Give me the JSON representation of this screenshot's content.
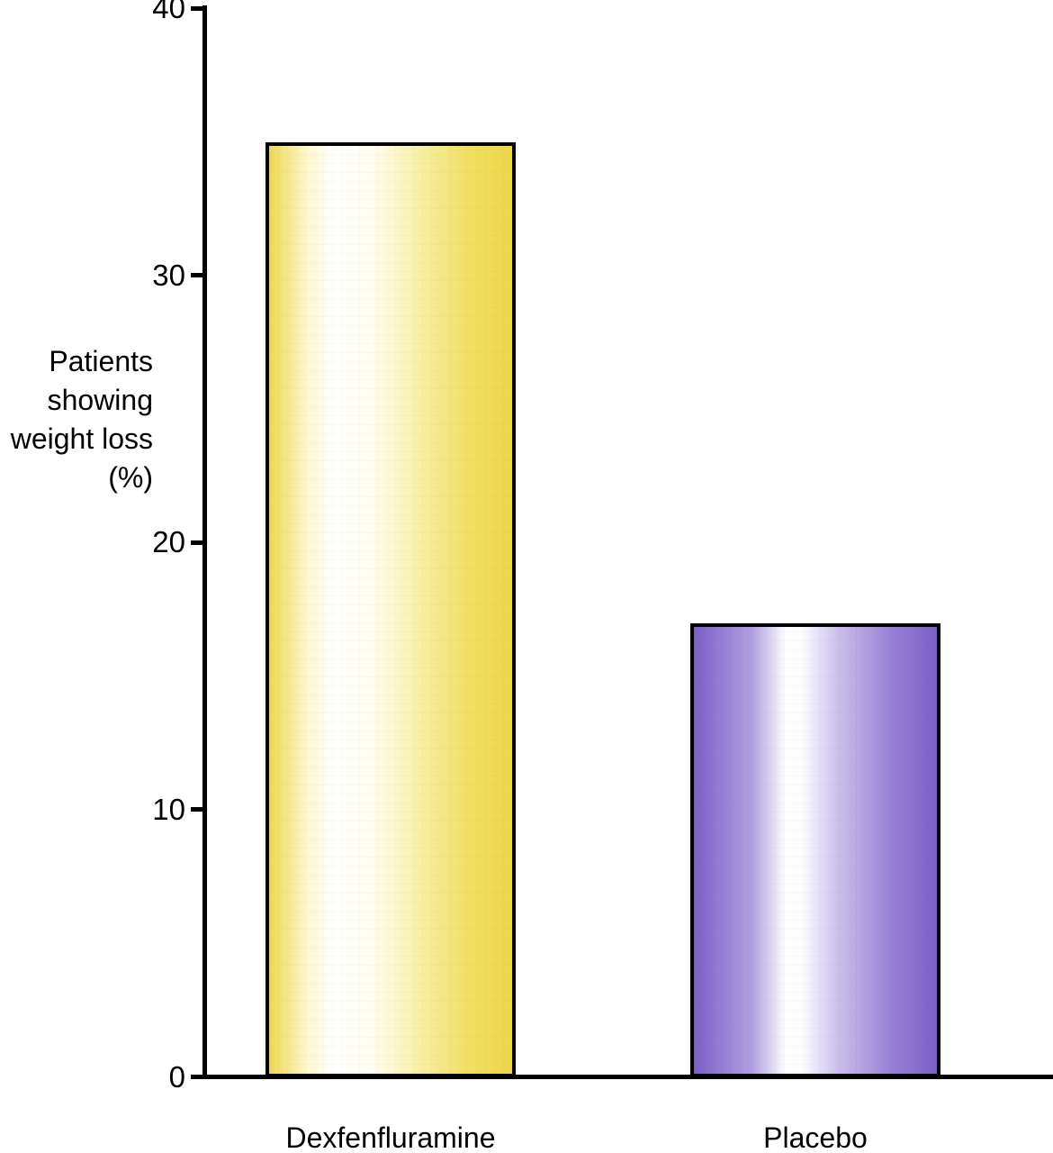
{
  "figure": {
    "background_color": "#ffffff",
    "text_color": "#000000",
    "axis_color": "#000000"
  },
  "chart_data": {
    "type": "bar",
    "categories": [
      "Dexfenfluramine",
      "Placebo"
    ],
    "values": [
      35,
      17
    ],
    "title": "",
    "xlabel": "",
    "ylabel": "Patients\nshowing\nweight loss\n(%)",
    "ylim": [
      0,
      40
    ],
    "y_ticks": [
      0,
      10,
      20,
      30,
      40
    ],
    "grid": false,
    "legend_position": "none",
    "bar_border_color": "#000000",
    "bar_styles": [
      {
        "name": "yellow-gradient",
        "edge_color": "#eed753",
        "highlight_color": "#ffffff",
        "gradient_stops": [
          "#eed753 0%",
          "#fdf8d0 16%",
          "#ffffff 26%",
          "#fffef2 42%",
          "#f8efa5 62%",
          "#f0df62 82%",
          "#ecd74b 100%"
        ]
      },
      {
        "name": "purple-gradient",
        "edge_color": "#7c60c8",
        "highlight_color": "#ffffff",
        "gradient_stops": [
          "#7c60c8 0%",
          "#b0a0e0 24%",
          "#ffffff 38%",
          "#fefeff 44%",
          "#c9bdea 60%",
          "#9a84d6 80%",
          "#7c60c8 100%"
        ]
      }
    ]
  }
}
